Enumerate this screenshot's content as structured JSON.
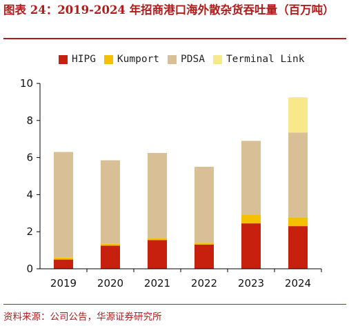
{
  "title": "图表 24：2019-2024 年招商港口海外散杂货吞吐量（百万吨）",
  "source": "资料来源：公司公告，华源证券研究所",
  "chart_data": {
    "type": "bar",
    "stacked": true,
    "categories": [
      "2019",
      "2020",
      "2021",
      "2022",
      "2023",
      "2024"
    ],
    "series": [
      {
        "name": "HIPG",
        "color": "#c8200f",
        "values": [
          0.5,
          1.25,
          1.55,
          1.3,
          2.45,
          2.3
        ]
      },
      {
        "name": "Kumport",
        "color": "#f5c000",
        "values": [
          0.1,
          0.1,
          0.1,
          0.1,
          0.45,
          0.45
        ]
      },
      {
        "name": "PDSA",
        "color": "#d9bf96",
        "values": [
          5.7,
          4.5,
          4.6,
          4.1,
          4.0,
          4.6
        ]
      },
      {
        "name": "Terminal Link",
        "color": "#f7e889",
        "values": [
          0,
          0,
          0,
          0,
          0,
          1.9
        ]
      }
    ],
    "ylim": [
      0,
      10
    ],
    "yticks": [
      0,
      2,
      4,
      6,
      8,
      10
    ],
    "xlabel": "",
    "ylabel": "",
    "grid": false,
    "legend": "top"
  }
}
